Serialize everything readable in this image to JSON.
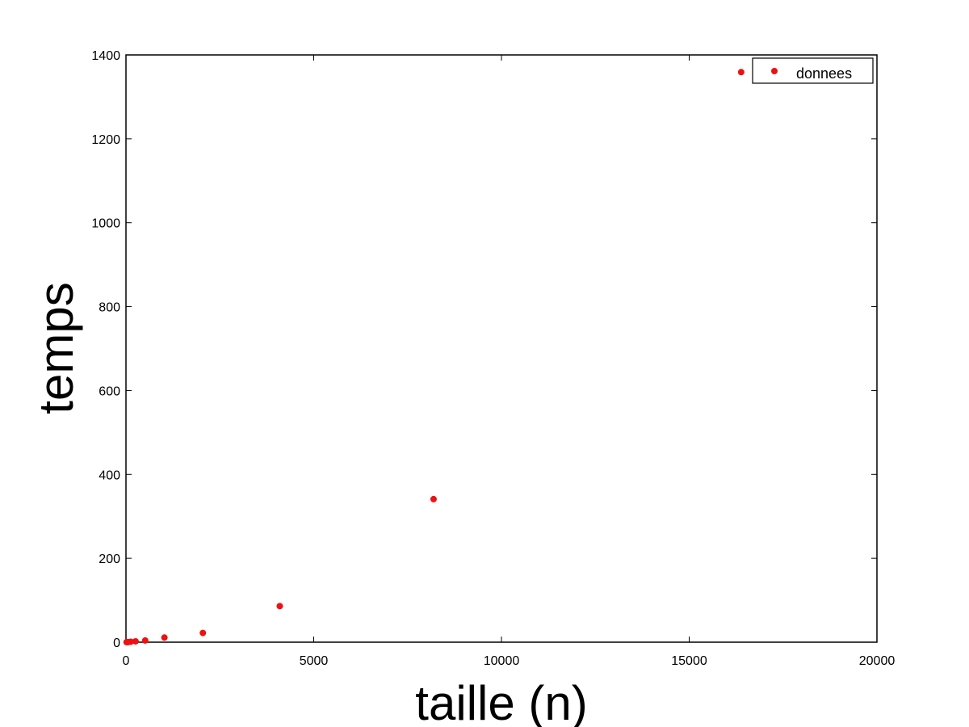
{
  "chart_data": {
    "type": "scatter",
    "xlabel": "taille (n)",
    "ylabel": "temps",
    "xlim": [
      0,
      20000
    ],
    "ylim": [
      0,
      1400
    ],
    "xticks": [
      0,
      5000,
      10000,
      15000,
      20000
    ],
    "yticks": [
      0,
      200,
      400,
      600,
      800,
      1000,
      1200,
      1400
    ],
    "grid": false,
    "legend_position": "top-right",
    "series": [
      {
        "name": "donnees",
        "color": "#ee1111",
        "x": [
          16,
          32,
          64,
          128,
          256,
          512,
          1024,
          2048,
          4096,
          8192,
          16384
        ],
        "y": [
          0.05,
          0.1,
          0.3,
          1,
          2,
          4,
          11,
          22,
          86,
          341,
          1359
        ]
      }
    ]
  }
}
